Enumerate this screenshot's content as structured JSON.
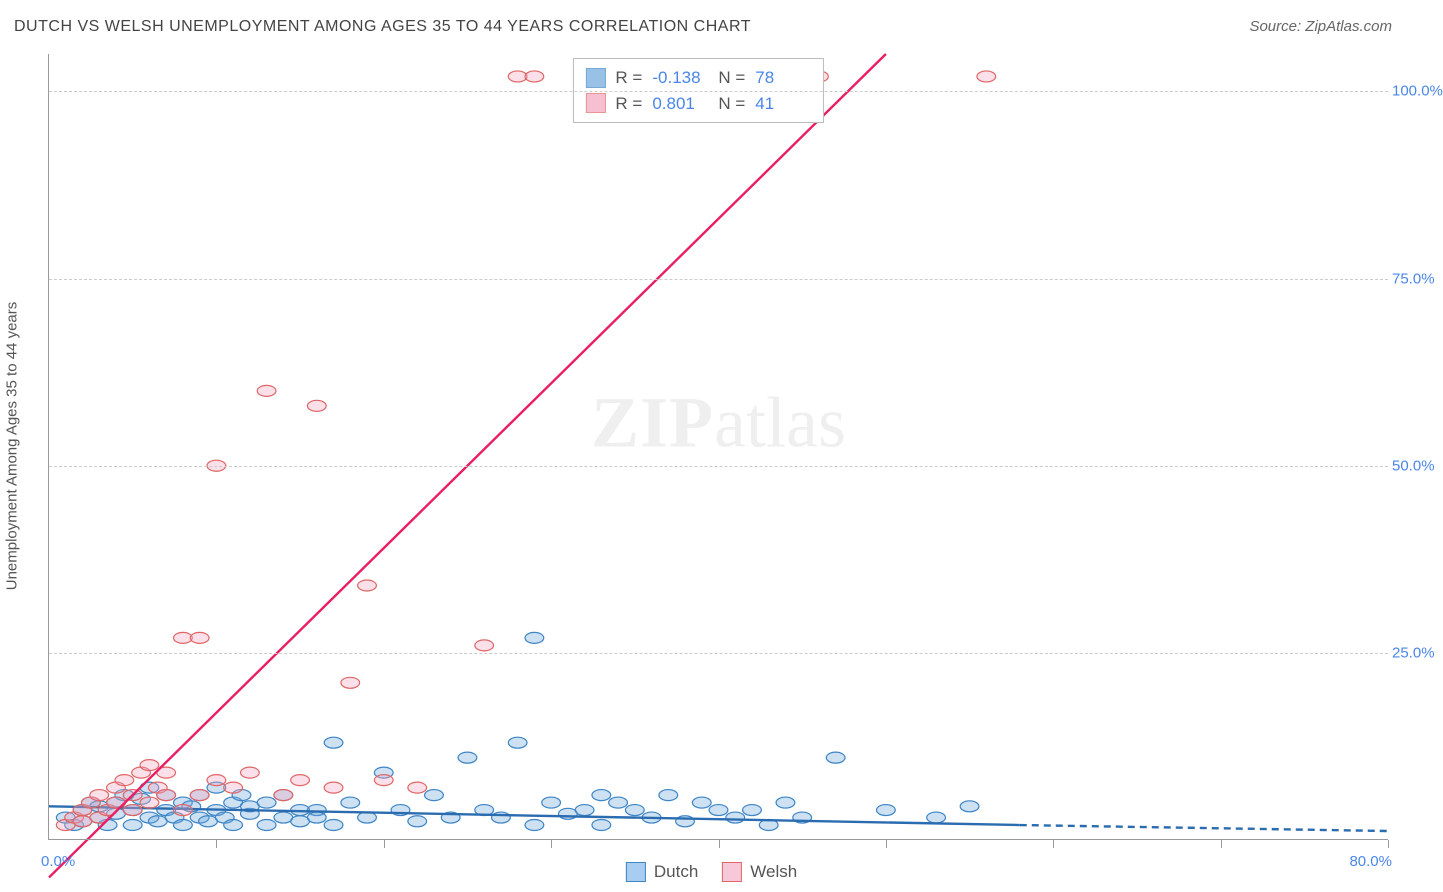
{
  "title": "DUTCH VS WELSH UNEMPLOYMENT AMONG AGES 35 TO 44 YEARS CORRELATION CHART",
  "source": "Source: ZipAtlas.com",
  "y_axis_label": "Unemployment Among Ages 35 to 44 years",
  "watermark": {
    "bold": "ZIP",
    "rest": "atlas"
  },
  "chart": {
    "type": "scatter-with-trend",
    "background_color": "#ffffff",
    "grid_color": "#cccccc",
    "axis_color": "#999999",
    "xlim": [
      0,
      80
    ],
    "ylim": [
      0,
      105
    ],
    "x_ticks": [
      0,
      10,
      20,
      30,
      40,
      50,
      60,
      70,
      80
    ],
    "x_start_label": "0.0%",
    "x_end_label": "80.0%",
    "y_gridlines": [
      {
        "value": 25,
        "label": "25.0%"
      },
      {
        "value": 50,
        "label": "50.0%"
      },
      {
        "value": 75,
        "label": "75.0%"
      },
      {
        "value": 100,
        "label": "100.0%"
      }
    ],
    "tick_label_color": "#4a86e8",
    "marker_radius": 7,
    "marker_stroke_width": 1.2,
    "marker_fill_opacity": 0.35,
    "trend_line_width": 2.4,
    "trend_dash_extension": "7,5",
    "series": [
      {
        "name": "Dutch",
        "color": "#6fa8dc",
        "stroke": "#3d85c6",
        "line_color": "#2b6cb0",
        "stats": {
          "R": "-0.138",
          "N": "78"
        },
        "trend": {
          "x1": 0,
          "y1": 4.5,
          "x2": 58,
          "y2": 2.0,
          "ext_x2": 80,
          "ext_y2": 1.2
        },
        "points": [
          [
            1,
            3
          ],
          [
            1.5,
            2
          ],
          [
            2,
            4
          ],
          [
            2,
            2.5
          ],
          [
            2.5,
            5
          ],
          [
            3,
            3
          ],
          [
            3,
            4.5
          ],
          [
            3.5,
            2
          ],
          [
            4,
            5
          ],
          [
            4,
            3.5
          ],
          [
            4.5,
            6
          ],
          [
            5,
            2
          ],
          [
            5,
            4
          ],
          [
            5.5,
            5.5
          ],
          [
            6,
            3
          ],
          [
            6,
            7
          ],
          [
            6.5,
            2.5
          ],
          [
            7,
            4
          ],
          [
            7,
            6
          ],
          [
            7.5,
            3
          ],
          [
            8,
            5
          ],
          [
            8,
            2
          ],
          [
            8.5,
            4.5
          ],
          [
            9,
            3
          ],
          [
            9,
            6
          ],
          [
            9.5,
            2.5
          ],
          [
            10,
            4
          ],
          [
            10,
            7
          ],
          [
            10.5,
            3
          ],
          [
            11,
            5
          ],
          [
            11,
            2
          ],
          [
            11.5,
            6
          ],
          [
            12,
            3.5
          ],
          [
            12,
            4.5
          ],
          [
            13,
            2
          ],
          [
            13,
            5
          ],
          [
            14,
            3
          ],
          [
            14,
            6
          ],
          [
            15,
            2.5
          ],
          [
            15,
            4
          ],
          [
            16,
            4
          ],
          [
            16,
            3
          ],
          [
            17,
            13
          ],
          [
            17,
            2
          ],
          [
            18,
            5
          ],
          [
            19,
            3
          ],
          [
            20,
            9
          ],
          [
            21,
            4
          ],
          [
            22,
            2.5
          ],
          [
            23,
            6
          ],
          [
            24,
            3
          ],
          [
            25,
            11
          ],
          [
            26,
            4
          ],
          [
            27,
            3
          ],
          [
            28,
            13
          ],
          [
            29,
            27
          ],
          [
            29,
            2
          ],
          [
            30,
            5
          ],
          [
            31,
            3.5
          ],
          [
            32,
            4
          ],
          [
            33,
            6
          ],
          [
            33,
            2
          ],
          [
            34,
            5
          ],
          [
            35,
            4
          ],
          [
            36,
            3
          ],
          [
            37,
            6
          ],
          [
            38,
            2.5
          ],
          [
            39,
            5
          ],
          [
            40,
            4
          ],
          [
            41,
            3
          ],
          [
            42,
            4
          ],
          [
            43,
            2
          ],
          [
            44,
            5
          ],
          [
            45,
            3
          ],
          [
            47,
            11
          ],
          [
            50,
            4
          ],
          [
            53,
            3
          ],
          [
            55,
            4.5
          ]
        ]
      },
      {
        "name": "Welsh",
        "color": "#f4a6c0",
        "stroke": "#e06666",
        "line_color": "#e91e63",
        "stats": {
          "R": "0.801",
          "N": "41"
        },
        "trend": {
          "x1": 0,
          "y1": -5,
          "x2": 50,
          "y2": 105
        },
        "points": [
          [
            1,
            2
          ],
          [
            1.5,
            3
          ],
          [
            2,
            2.5
          ],
          [
            2,
            4
          ],
          [
            2.5,
            5
          ],
          [
            3,
            3
          ],
          [
            3,
            6
          ],
          [
            3.5,
            4
          ],
          [
            4,
            7
          ],
          [
            4,
            5
          ],
          [
            4.5,
            8
          ],
          [
            5,
            6
          ],
          [
            5,
            4
          ],
          [
            5.5,
            9
          ],
          [
            6,
            5
          ],
          [
            6,
            10
          ],
          [
            6.5,
            7
          ],
          [
            7,
            6
          ],
          [
            7,
            9
          ],
          [
            8,
            4
          ],
          [
            8,
            27
          ],
          [
            9,
            27
          ],
          [
            9,
            6
          ],
          [
            10,
            8
          ],
          [
            10,
            50
          ],
          [
            11,
            7
          ],
          [
            12,
            9
          ],
          [
            13,
            60
          ],
          [
            14,
            6
          ],
          [
            15,
            8
          ],
          [
            16,
            58
          ],
          [
            17,
            7
          ],
          [
            18,
            21
          ],
          [
            19,
            34
          ],
          [
            20,
            8
          ],
          [
            22,
            7
          ],
          [
            26,
            26
          ],
          [
            28,
            102
          ],
          [
            29,
            102
          ],
          [
            46,
            102
          ],
          [
            56,
            102
          ]
        ]
      }
    ]
  },
  "stats_box": {
    "labels": {
      "R": "R =",
      "N": "N ="
    }
  },
  "legend": {
    "items": [
      {
        "label": "Dutch",
        "fill": "#a9cdf0",
        "stroke": "#3d85c6"
      },
      {
        "label": "Welsh",
        "fill": "#f7c8d8",
        "stroke": "#e06666"
      }
    ]
  }
}
